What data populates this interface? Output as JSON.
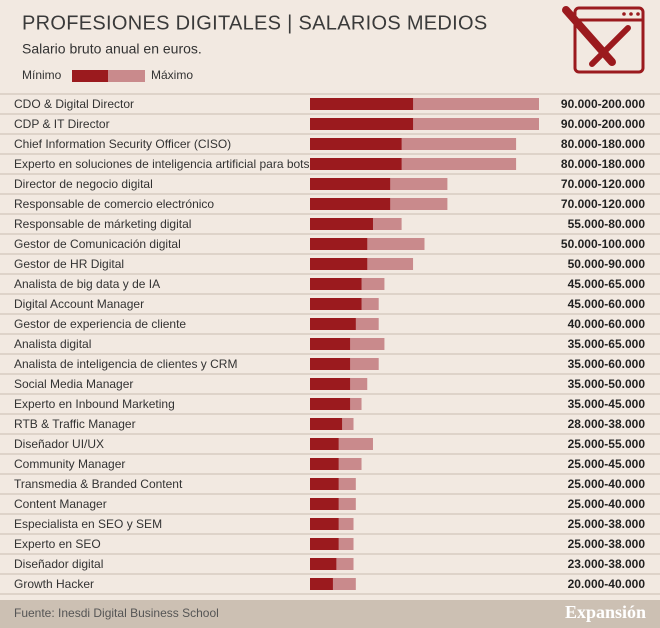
{
  "chart_data": {
    "type": "range-bar",
    "title": "PROFESIONES DIGITALES | SALARIOS MEDIOS",
    "subtitle": "Salario bruto anual en euros.",
    "source": "Fuente: Inesdi Digital Business School",
    "brand": "Expansión",
    "xlim": [
      0,
      200000
    ],
    "categories": [
      "CDO & Digital Director",
      "CDP & IT Director",
      "Chief Information Security Officer (CISO)",
      "Experto en soluciones de inteligencia artificial para bots",
      "Director de negocio digital",
      "Responsable de comercio electrónico",
      "Responsable de márketing digital",
      "Gestor de Comunicación digital",
      "Gestor de HR Digital",
      "Analista de big data y de IA",
      "Digital Account Manager",
      "Gestor de experiencia de cliente",
      "Analista digital",
      "Analista de inteligencia de clientes y CRM",
      "Social Media Manager",
      "Experto en Inbound Marketing",
      "RTB & Traffic Manager",
      "Diseñador UI/UX",
      "Community Manager",
      "Transmedia & Branded Content",
      "Content Manager",
      "Especialista en SEO y SEM",
      "Experto en SEO",
      "Diseñador digital",
      "Growth Hacker"
    ],
    "series": [
      {
        "name": "Mínimo",
        "color": "#9b1a1e",
        "values": [
          90000,
          90000,
          80000,
          80000,
          70000,
          70000,
          55000,
          50000,
          50000,
          45000,
          45000,
          40000,
          35000,
          35000,
          35000,
          35000,
          28000,
          25000,
          25000,
          25000,
          25000,
          25000,
          25000,
          23000,
          20000
        ]
      },
      {
        "name": "Máximo",
        "color": "#c98a8c",
        "values": [
          200000,
          200000,
          180000,
          180000,
          120000,
          120000,
          80000,
          100000,
          90000,
          65000,
          60000,
          60000,
          65000,
          60000,
          50000,
          45000,
          38000,
          55000,
          45000,
          40000,
          40000,
          38000,
          38000,
          38000,
          40000
        ]
      }
    ],
    "value_labels": [
      "90.000-200.000",
      "90.000-200.000",
      "80.000-180.000",
      "80.000-180.000",
      "70.000-120.000",
      "70.000-120.000",
      "55.000-80.000",
      "50.000-100.000",
      "50.000-90.000",
      "45.000-65.000",
      "45.000-60.000",
      "40.000-60.000",
      "35.000-65.000",
      "35.000-60.000",
      "35.000-50.000",
      "35.000-45.000",
      "28.000-38.000",
      "25.000-55.000",
      "25.000-45.000",
      "25.000-40.000",
      "25.000-40.000",
      "25.000-38.000",
      "25.000-38.000",
      "23.000-38.000",
      "20.000-40.000"
    ]
  }
}
